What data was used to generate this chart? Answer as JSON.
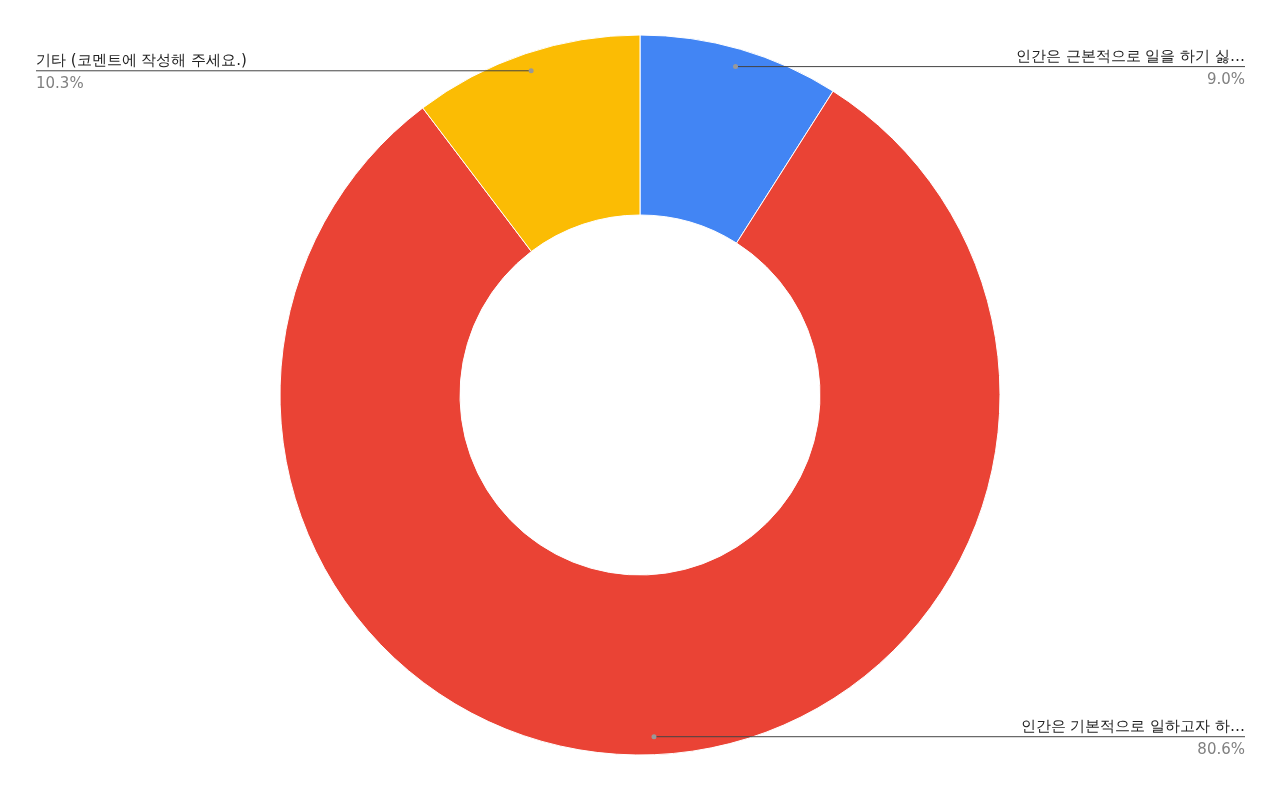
{
  "chart_data": {
    "type": "donut",
    "categories": [
      "인간은 근본적으로 일을 하기 싫…",
      "인간은 기본적으로 일하고자 하…",
      "기타 (코멘트에 작성해 주세요.)"
    ],
    "values": [
      9.0,
      80.6,
      10.3
    ],
    "value_labels": [
      "9.0%",
      "80.6%",
      "10.3%"
    ],
    "colors": [
      "#4285f4",
      "#ea4335",
      "#fbbc04"
    ]
  }
}
